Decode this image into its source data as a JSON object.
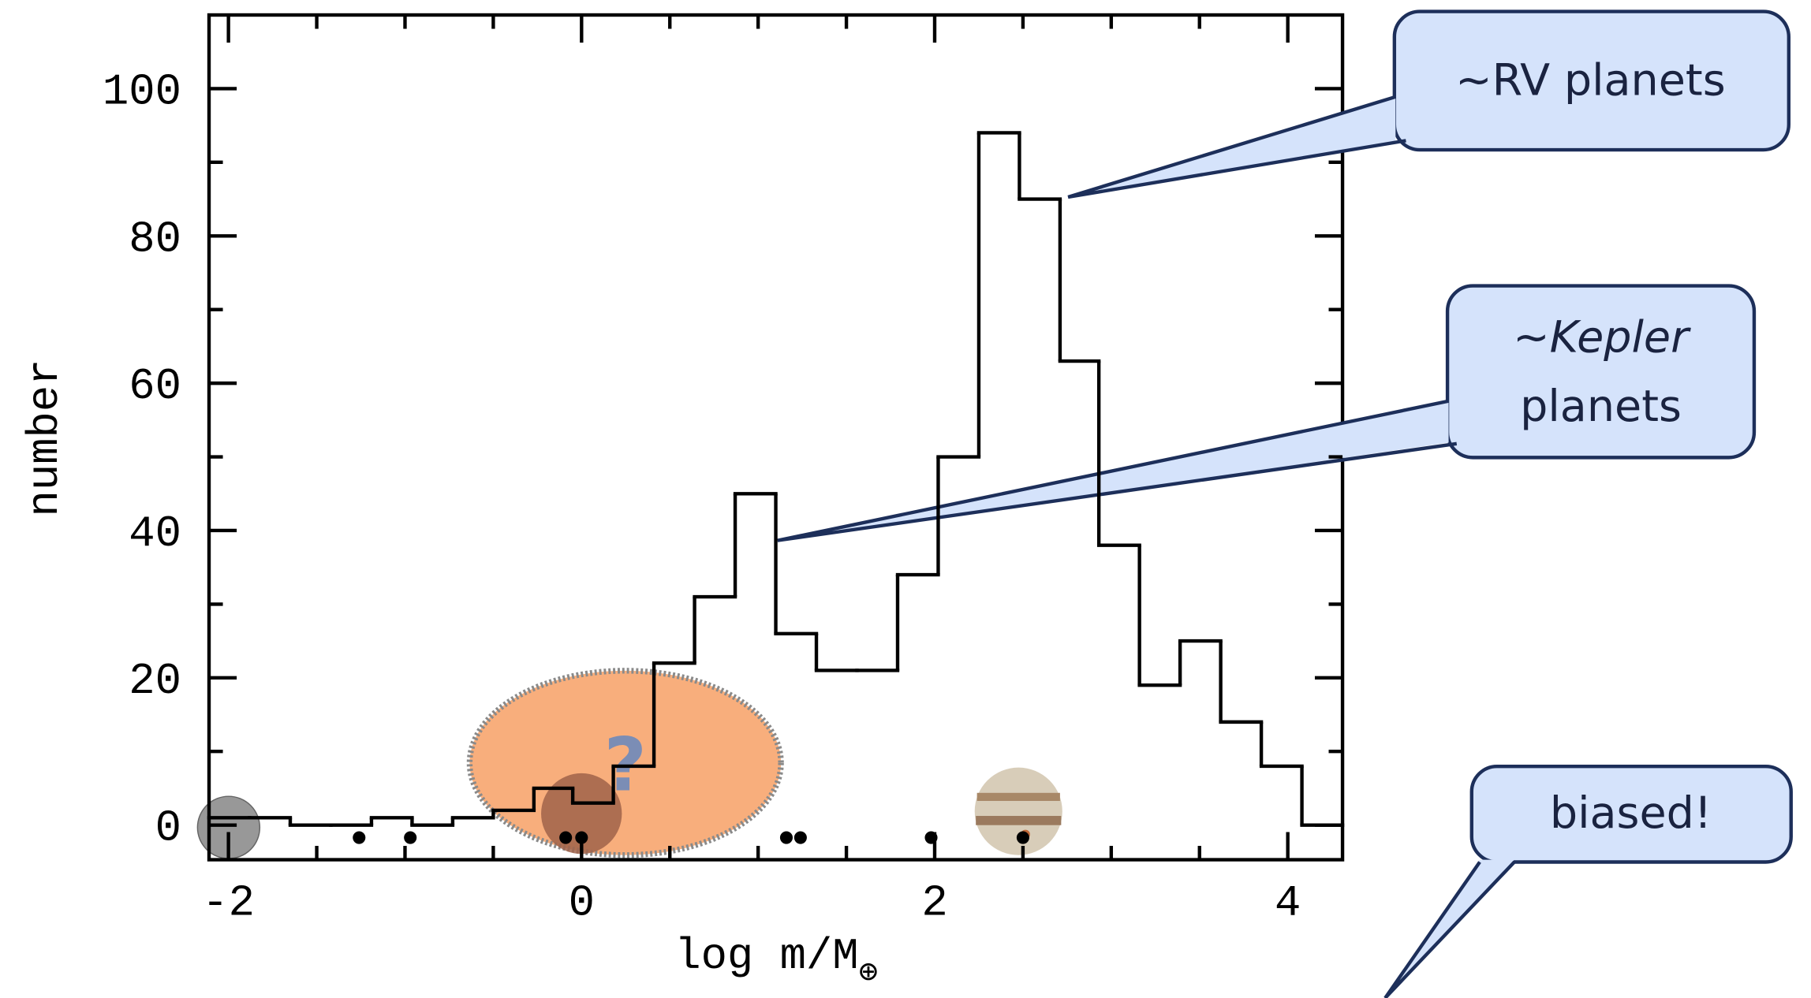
{
  "chart_data": {
    "type": "histogram",
    "xlabel": {
      "main": "log m/M",
      "sub": "⊕"
    },
    "ylabel": "number",
    "bins": [
      -2.11,
      -1.88,
      -1.65,
      -1.42,
      -1.19,
      -0.96,
      -0.73,
      -0.5,
      -0.27,
      -0.05,
      0.18,
      0.41,
      0.64,
      0.87,
      1.1,
      1.33,
      1.56,
      1.79,
      2.02,
      2.25,
      2.48,
      2.71,
      2.93,
      3.16,
      3.39,
      3.62,
      3.85,
      4.08,
      4.31
    ],
    "values": [
      1,
      1,
      0,
      0,
      1,
      0,
      1,
      2,
      5,
      3,
      8,
      22,
      31,
      45,
      26,
      21,
      21,
      34,
      50,
      94,
      85,
      63,
      38,
      19,
      25,
      14,
      8,
      0
    ],
    "color": "#000000",
    "points": {
      "x": [
        -1.26,
        -0.97,
        -0.09,
        0,
        1.16,
        1.24,
        1.98,
        2.5
      ],
      "y": [
        -1.7,
        -1.7,
        -1.7,
        -1.7,
        -1.7,
        -1.7,
        -1.7,
        -1.7
      ],
      "color": "#000000"
    },
    "xlim": [
      -2.11,
      4.31
    ],
    "ylim": [
      -4.7,
      110
    ],
    "xticks": [
      -2,
      0,
      2,
      4
    ],
    "xminorticks": [
      -1.5,
      -1,
      -0.5,
      0.5,
      1,
      1.5,
      2.5,
      3,
      3.5
    ],
    "yticks": [
      0,
      20,
      40,
      60,
      80,
      100
    ],
    "yminorticks": [
      10,
      30,
      50,
      70,
      90
    ],
    "annotations": {
      "question": "?",
      "rv": "~RV planets",
      "kepler": {
        "prefix": "~",
        "italic": "Kepler",
        "line2": "planets"
      },
      "biased": "biased!"
    }
  }
}
